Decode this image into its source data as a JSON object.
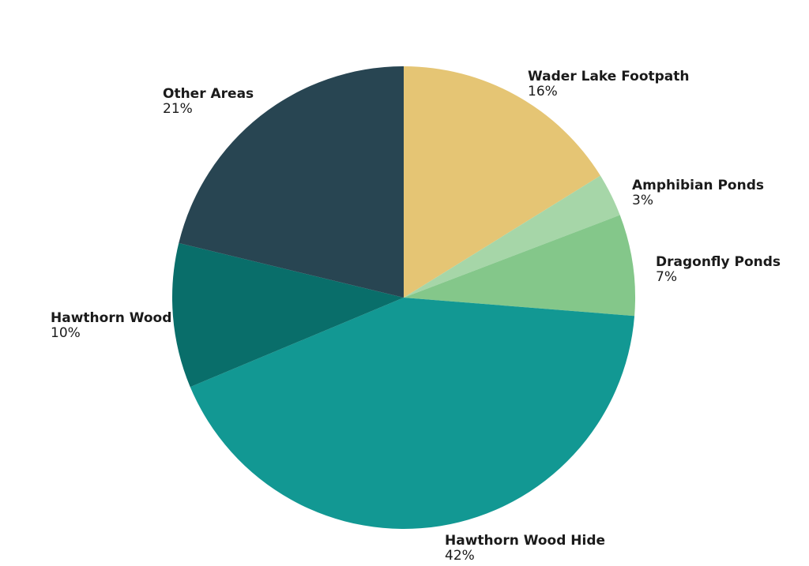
{
  "chart_data": {
    "type": "pie",
    "slices": [
      {
        "label": "Wader Lake Footpath",
        "value": 16,
        "value_label": "16%",
        "color": "#E5C574"
      },
      {
        "label": "Amphibian Ponds",
        "value": 3,
        "value_label": "3%",
        "color": "#A6D6A8"
      },
      {
        "label": "Dragonfly Ponds",
        "value": 7,
        "value_label": "7%",
        "color": "#84C78A"
      },
      {
        "label": "Hawthorn Wood Hide",
        "value": 42,
        "value_label": "42%",
        "color": "#129893"
      },
      {
        "label": "Hawthorn Wood",
        "value": 10,
        "value_label": "10%",
        "color": "#096E6A"
      },
      {
        "label": "Other Areas",
        "value": 21,
        "value_label": "21%",
        "color": "#284552"
      }
    ],
    "start_angle": "12 o'clock",
    "direction": "clockwise",
    "legend": "none"
  }
}
